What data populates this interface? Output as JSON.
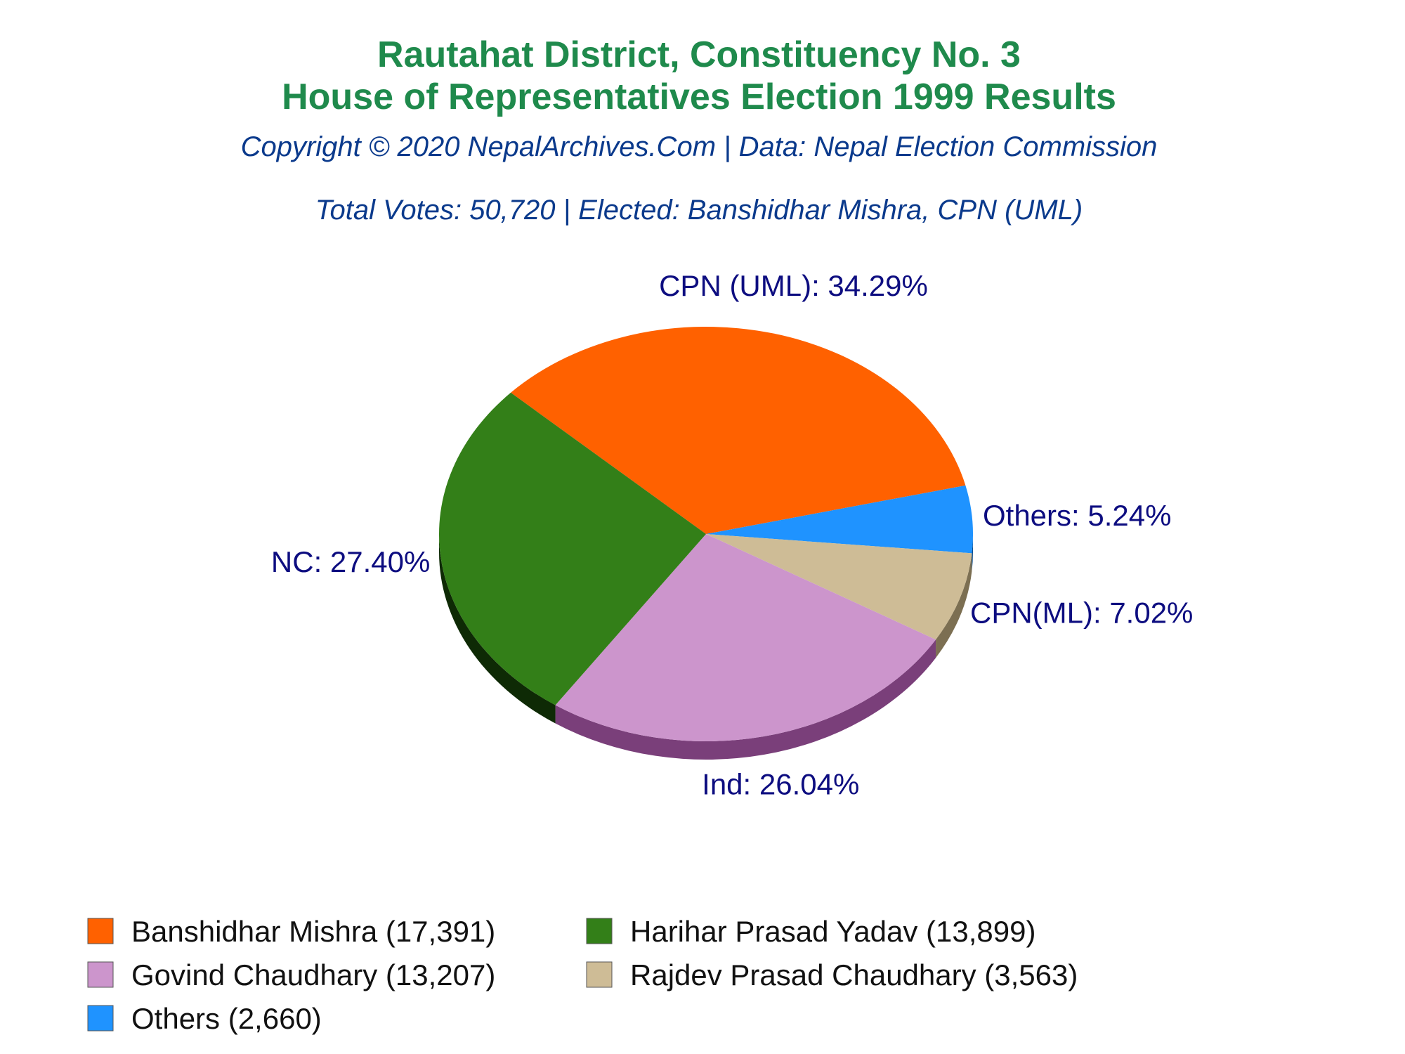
{
  "header": {
    "title_line1": "Rautahat District, Constituency No. 3",
    "title_line2": "House of Representatives Election 1999 Results",
    "copyright": "Copyright © 2020 NepalArchives.Com | Data: Nepal Election Commission",
    "summary": "Total Votes: 50,720 | Elected: Banshidhar Mishra, CPN (UML)"
  },
  "colors": {
    "title": "#1f8a4c",
    "subtitle": "#0b3a8c",
    "slice_label": "#0d0d80",
    "legend_text": "#111111"
  },
  "chart_data": {
    "type": "pie",
    "total_votes": 50720,
    "slices": [
      {
        "candidate": "Banshidhar Mishra",
        "votes": 17391,
        "legend": "Banshidhar Mishra (17,391)",
        "label": "CPN (UML): 34.29%",
        "percent": 34.29,
        "color": "#ff6100",
        "shade": "#8a3500"
      },
      {
        "candidate": "Others",
        "votes": 2660,
        "legend": "Others (2,660)",
        "label": "Others: 5.24%",
        "percent": 5.24,
        "color": "#1f93ff",
        "shade": "#0d4f8f"
      },
      {
        "candidate": "Rajdev Prasad Chaudhary",
        "votes": 3563,
        "legend": "Rajdev Prasad Chaudhary (3,563)",
        "label": "CPN(ML): 7.02%",
        "percent": 7.02,
        "color": "#cebc96",
        "shade": "#7c6f52"
      },
      {
        "candidate": "Govind Chaudhary",
        "votes": 13207,
        "legend": "Govind Chaudhary (13,207)",
        "label": "Ind: 26.04%",
        "percent": 26.04,
        "color": "#cc95cc",
        "shade": "#7a3f7a"
      },
      {
        "candidate": "Harihar Prasad Yadav",
        "votes": 13899,
        "legend": "Harihar Prasad Yadav (13,899)",
        "label": "NC: 27.40%",
        "percent": 27.4,
        "color": "#337f18",
        "shade": "#0e2a05"
      }
    ],
    "legend_order": [
      0,
      4,
      3,
      2,
      1
    ]
  }
}
